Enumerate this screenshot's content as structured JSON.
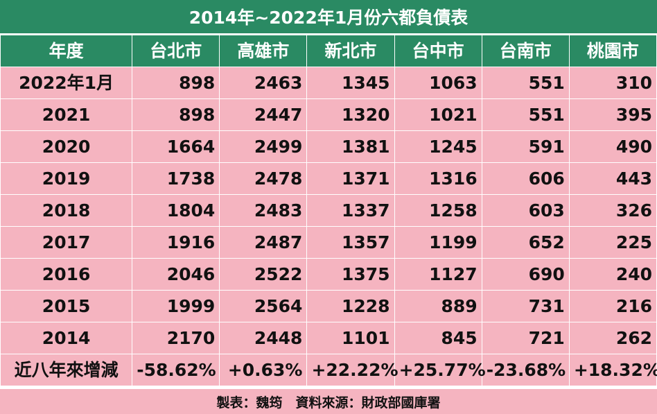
{
  "title": "2014年~2022年1月份六都負債表",
  "footer": "製表：魏筠　資料來源：財政部國庫署",
  "colors": {
    "header_bg": "#2a8a63",
    "cell_bg": "#f5b4c0",
    "header_text": "#ffffff"
  },
  "chart_data": {
    "type": "table",
    "title": "2014年~2022年1月份六都負債表",
    "columns": [
      "年度",
      "台北市",
      "高雄市",
      "新北市",
      "台中市",
      "台南市",
      "桃園市"
    ],
    "rows": [
      [
        "2022年1月",
        "898",
        "2463",
        "1345",
        "1063",
        "551",
        "310"
      ],
      [
        "2021",
        "898",
        "2447",
        "1320",
        "1021",
        "551",
        "395"
      ],
      [
        "2020",
        "1664",
        "2499",
        "1381",
        "1245",
        "591",
        "490"
      ],
      [
        "2019",
        "1738",
        "2478",
        "1371",
        "1316",
        "606",
        "443"
      ],
      [
        "2018",
        "1804",
        "2483",
        "1337",
        "1258",
        "603",
        "326"
      ],
      [
        "2017",
        "1916",
        "2487",
        "1357",
        "1199",
        "652",
        "225"
      ],
      [
        "2016",
        "2046",
        "2522",
        "1375",
        "1127",
        "690",
        "240"
      ],
      [
        "2015",
        "1999",
        "2564",
        "1228",
        "889",
        "731",
        "216"
      ],
      [
        "2014",
        "2170",
        "2448",
        "1101",
        "845",
        "721",
        "262"
      ],
      [
        "近八年來增減",
        "-58.62%",
        "+0.63%",
        "+22.22%",
        "+25.77%",
        "-23.68%",
        "+18.32%"
      ]
    ]
  }
}
